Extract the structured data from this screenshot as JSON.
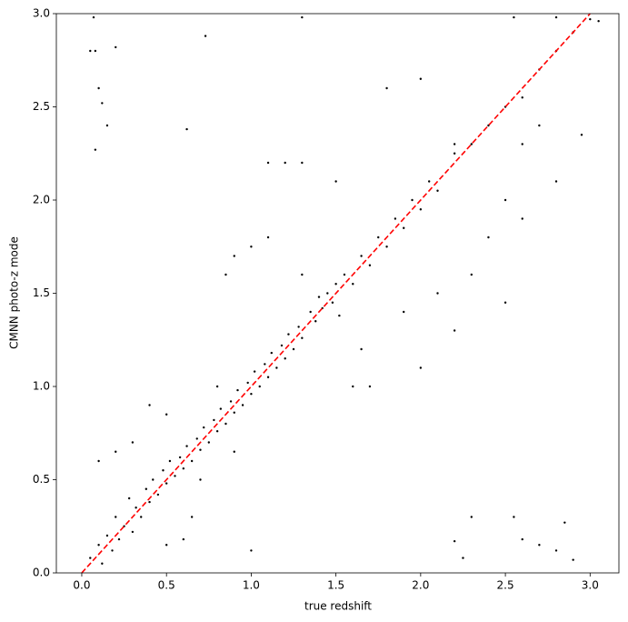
{
  "chart_data": {
    "type": "scatter",
    "x_label": "true redshift",
    "y_label": "CMNN photo-z mode",
    "xlim": [
      -0.15,
      3.17
    ],
    "ylim": [
      0,
      3
    ],
    "xticks": [
      {
        "value": 0,
        "label": "0.0"
      },
      0.5,
      {
        "value": 1,
        "label": "1.0"
      },
      1.5,
      {
        "value": 2,
        "label": "2.0"
      },
      2.5,
      {
        "value": 3,
        "label": "3.0"
      }
    ],
    "yticks": [
      {
        "value": 0,
        "label": "0.0"
      },
      0.5,
      {
        "value": 1,
        "label": "1.0"
      },
      1.5,
      {
        "value": 2,
        "label": "2.0"
      },
      2.5,
      {
        "value": 3,
        "label": "3.0"
      }
    ],
    "color": "#000000",
    "x": [
      0.05,
      0.1,
      0.12,
      0.15,
      0.18,
      0.2,
      0.22,
      0.25,
      0.28,
      0.3,
      0.32,
      0.35,
      0.38,
      0.4,
      0.42,
      0.45,
      0.48,
      0.5,
      0.52,
      0.55,
      0.58,
      0.6,
      0.62,
      0.65,
      0.68,
      0.7,
      0.72,
      0.75,
      0.78,
      0.8,
      0.82,
      0.85,
      0.88,
      0.9,
      0.92,
      0.95,
      0.98,
      1.0,
      1.02,
      1.05,
      1.08,
      1.1,
      1.12,
      1.15,
      1.18,
      1.2,
      1.22,
      1.25,
      1.28,
      1.3,
      1.35,
      1.38,
      1.4,
      1.42,
      1.45,
      1.48,
      1.5,
      1.52,
      1.55,
      1.6,
      1.65,
      1.7,
      1.75,
      1.8,
      1.85,
      1.9,
      1.95,
      2.0,
      2.05,
      2.1,
      2.2,
      2.3,
      2.4,
      2.5,
      2.6,
      2.7,
      2.8,
      2.9,
      3.0,
      0.1,
      0.2,
      0.3,
      0.5,
      0.6,
      0.65,
      0.4,
      0.5,
      0.8,
      0.7,
      0.9,
      1.0,
      0.85,
      0.9,
      1.0,
      1.1,
      1.2,
      1.3,
      1.1,
      1.3,
      1.5,
      1.6,
      1.7,
      1.65,
      1.9,
      2.0,
      2.1,
      2.2,
      2.3,
      2.4,
      2.5,
      2.6,
      2.7,
      1.8,
      2.0,
      2.2,
      2.5,
      2.6,
      2.8,
      2.2,
      2.3,
      2.25,
      2.55,
      2.6,
      2.7,
      2.8,
      2.85,
      2.9,
      0.05,
      0.08,
      0.1,
      0.12,
      0.15,
      0.07,
      0.2,
      0.08,
      0.62,
      0.73,
      1.3,
      2.55,
      2.8,
      2.95,
      3.05
    ],
    "y": [
      0.08,
      0.15,
      0.05,
      0.2,
      0.12,
      0.3,
      0.18,
      0.25,
      0.4,
      0.22,
      0.35,
      0.3,
      0.45,
      0.38,
      0.5,
      0.42,
      0.55,
      0.48,
      0.6,
      0.52,
      0.62,
      0.56,
      0.68,
      0.6,
      0.72,
      0.66,
      0.78,
      0.7,
      0.82,
      0.76,
      0.88,
      0.8,
      0.92,
      0.86,
      0.98,
      0.9,
      1.02,
      0.96,
      1.08,
      1.0,
      1.12,
      1.05,
      1.18,
      1.1,
      1.22,
      1.15,
      1.28,
      1.2,
      1.32,
      1.26,
      1.4,
      1.35,
      1.48,
      1.42,
      1.5,
      1.45,
      1.55,
      1.38,
      1.6,
      1.55,
      1.7,
      1.65,
      1.8,
      1.75,
      1.9,
      1.85,
      2.0,
      1.95,
      2.1,
      2.05,
      2.25,
      2.3,
      2.4,
      2.5,
      2.55,
      2.7,
      2.8,
      2.9,
      2.97,
      0.6,
      0.65,
      0.7,
      0.15,
      0.18,
      0.3,
      0.9,
      0.85,
      1.0,
      0.5,
      0.65,
      0.12,
      1.6,
      1.7,
      1.75,
      2.2,
      2.2,
      2.2,
      1.8,
      1.6,
      2.1,
      1.0,
      1.0,
      1.2,
      1.4,
      1.1,
      1.5,
      1.3,
      1.6,
      1.8,
      2.0,
      2.3,
      2.4,
      2.6,
      2.65,
      2.3,
      1.45,
      1.9,
      2.1,
      0.17,
      0.3,
      0.08,
      0.3,
      0.18,
      0.15,
      0.12,
      0.27,
      0.07,
      2.8,
      2.8,
      2.6,
      2.52,
      2.4,
      2.98,
      2.82,
      2.27,
      2.38,
      2.88,
      2.98,
      2.98,
      2.98,
      2.35,
      2.96
    ],
    "reference_line": {
      "x": [
        0,
        3
      ],
      "y": [
        0,
        3
      ],
      "color": "#ff0000"
    }
  }
}
